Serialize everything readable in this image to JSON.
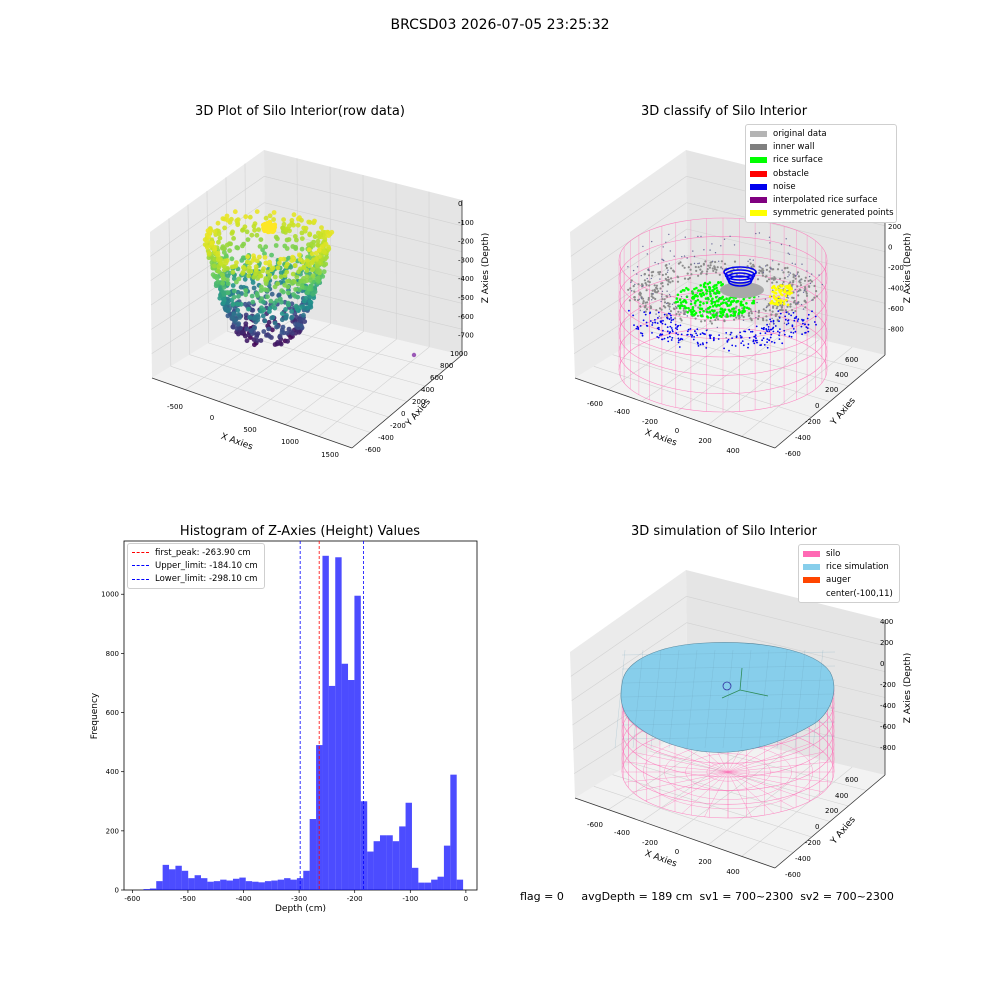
{
  "suptitle": "BRCSD03 2026-07-05 23:25:32",
  "panel1": {
    "title": "3D Plot of Silo Interior(row data)",
    "xlabel": "X Axies",
    "ylabel": "Y Axies",
    "zlabel": "Z Axies (Depth)",
    "xticks": [
      "-500",
      "0",
      "500",
      "1000",
      "1500"
    ],
    "yticks": [
      "-600",
      "-400",
      "-200",
      "0",
      "200",
      "400",
      "600",
      "800",
      "1000"
    ],
    "zticks": [
      "0",
      "-100",
      "-200",
      "-300",
      "-400",
      "-500",
      "-600",
      "-700"
    ]
  },
  "panel2": {
    "title": "3D classify of Silo Interior",
    "xlabel": "X Axies",
    "ylabel": "Y Axies",
    "zlabel": "Z Axies (Depth)",
    "xticks": [
      "-600",
      "-400",
      "-200",
      "0",
      "200",
      "400"
    ],
    "yticks": [
      "-600",
      "-400",
      "-200",
      "0",
      "200",
      "400",
      "600"
    ],
    "zticks": [
      "200",
      "0",
      "-200",
      "-400",
      "-600",
      "-800"
    ],
    "legend": [
      {
        "label": "original data",
        "color": "#b4b4b4"
      },
      {
        "label": "inner wall",
        "color": "#7f7f7f"
      },
      {
        "label": "rice surface",
        "color": "#00ff00"
      },
      {
        "label": "obstacle",
        "color": "#ff0000"
      },
      {
        "label": "noise",
        "color": "#0000ee"
      },
      {
        "label": "interpolated rice surface",
        "color": "#800080"
      },
      {
        "label": "symmetric generated points",
        "color": "#ffff00"
      }
    ]
  },
  "panel3": {
    "title": "Histogram of Z-Axies (Height) Values",
    "xlabel": "Depth (cm)",
    "ylabel": "Frequency",
    "legend": [
      {
        "label": "first_peak: -263.90 cm",
        "color": "#ff0000"
      },
      {
        "label": "Upper_limit: -184.10 cm",
        "color": "#0000ff"
      },
      {
        "label": "Lower_limit: -298.10 cm",
        "color": "#0000ff"
      }
    ]
  },
  "panel4": {
    "title": "3D simulation of Silo Interior",
    "xlabel": "X Axies",
    "ylabel": "Y Axies",
    "zlabel": "Z Axies (Depth)",
    "xticks": [
      "-600",
      "-400",
      "-200",
      "0",
      "200",
      "400"
    ],
    "yticks": [
      "-600",
      "-400",
      "-200",
      "0",
      "200",
      "400",
      "600"
    ],
    "zticks": [
      "400",
      "200",
      "0",
      "-200",
      "-400",
      "-600",
      "-800"
    ],
    "legend": [
      {
        "label": "silo",
        "color": "#ff69b4"
      },
      {
        "label": "rice simulation",
        "color": "#87ceeb"
      },
      {
        "label": "auger",
        "color": "#ff4500"
      },
      {
        "label": "center(-100,11)",
        "color": ""
      }
    ]
  },
  "footer": "flag = 0     avgDepth = 189 cm  sv1 = 700~2300  sv2 = 700~2300",
  "chart_data": [
    {
      "type": "histogram",
      "title": "Histogram of Z-Axies (Height) Values",
      "xlabel": "Depth (cm)",
      "ylabel": "Frequency",
      "xlim": [
        -615,
        20
      ],
      "ylim": [
        0,
        1180
      ],
      "xticks": [
        -600,
        -500,
        -400,
        -300,
        -200,
        -100,
        0
      ],
      "yticks": [
        0,
        200,
        400,
        600,
        800,
        1000
      ],
      "bin_width": 11.5,
      "bins": [
        {
          "x0": -580,
          "count": 3
        },
        {
          "x0": -568.5,
          "count": 5
        },
        {
          "x0": -557,
          "count": 30
        },
        {
          "x0": -545.5,
          "count": 85
        },
        {
          "x0": -534,
          "count": 70
        },
        {
          "x0": -522.5,
          "count": 82
        },
        {
          "x0": -511,
          "count": 65
        },
        {
          "x0": -499.5,
          "count": 40
        },
        {
          "x0": -488,
          "count": 50
        },
        {
          "x0": -476.5,
          "count": 40
        },
        {
          "x0": -465,
          "count": 28
        },
        {
          "x0": -453.5,
          "count": 30
        },
        {
          "x0": -442,
          "count": 35
        },
        {
          "x0": -430.5,
          "count": 32
        },
        {
          "x0": -419,
          "count": 38
        },
        {
          "x0": -407.5,
          "count": 42
        },
        {
          "x0": -396,
          "count": 30
        },
        {
          "x0": -384.5,
          "count": 28
        },
        {
          "x0": -373,
          "count": 26
        },
        {
          "x0": -361.5,
          "count": 30
        },
        {
          "x0": -350,
          "count": 32
        },
        {
          "x0": -338.5,
          "count": 35
        },
        {
          "x0": -327,
          "count": 40
        },
        {
          "x0": -315.5,
          "count": 35
        },
        {
          "x0": -304,
          "count": 40
        },
        {
          "x0": -292.5,
          "count": 65
        },
        {
          "x0": -281,
          "count": 240
        },
        {
          "x0": -269.5,
          "count": 490
        },
        {
          "x0": -258,
          "count": 1130
        },
        {
          "x0": -246.5,
          "count": 690
        },
        {
          "x0": -235,
          "count": 1125
        },
        {
          "x0": -223.5,
          "count": 765
        },
        {
          "x0": -212,
          "count": 710
        },
        {
          "x0": -200.5,
          "count": 995
        },
        {
          "x0": -189,
          "count": 300
        },
        {
          "x0": -177.5,
          "count": 130
        },
        {
          "x0": -166,
          "count": 165
        },
        {
          "x0": -154.5,
          "count": 185
        },
        {
          "x0": -143,
          "count": 185
        },
        {
          "x0": -131.5,
          "count": 165
        },
        {
          "x0": -120,
          "count": 215
        },
        {
          "x0": -108.5,
          "count": 295
        },
        {
          "x0": -97,
          "count": 75
        },
        {
          "x0": -85.5,
          "count": 25
        },
        {
          "x0": -74,
          "count": 25
        },
        {
          "x0": -62.5,
          "count": 35
        },
        {
          "x0": -51,
          "count": 45
        },
        {
          "x0": -39.5,
          "count": 150
        },
        {
          "x0": -28,
          "count": 390
        },
        {
          "x0": -16.5,
          "count": 35
        }
      ],
      "vlines": [
        {
          "label": "first_peak: -263.90 cm",
          "x": -263.9,
          "color": "#ff0000"
        },
        {
          "label": "Upper_limit: -184.10 cm",
          "x": -184.1,
          "color": "#0000ff"
        },
        {
          "label": "Lower_limit: -298.10 cm",
          "x": -298.1,
          "color": "#0000ff"
        }
      ],
      "bar_color": "#0000ff",
      "legend_position": "top-left"
    }
  ]
}
